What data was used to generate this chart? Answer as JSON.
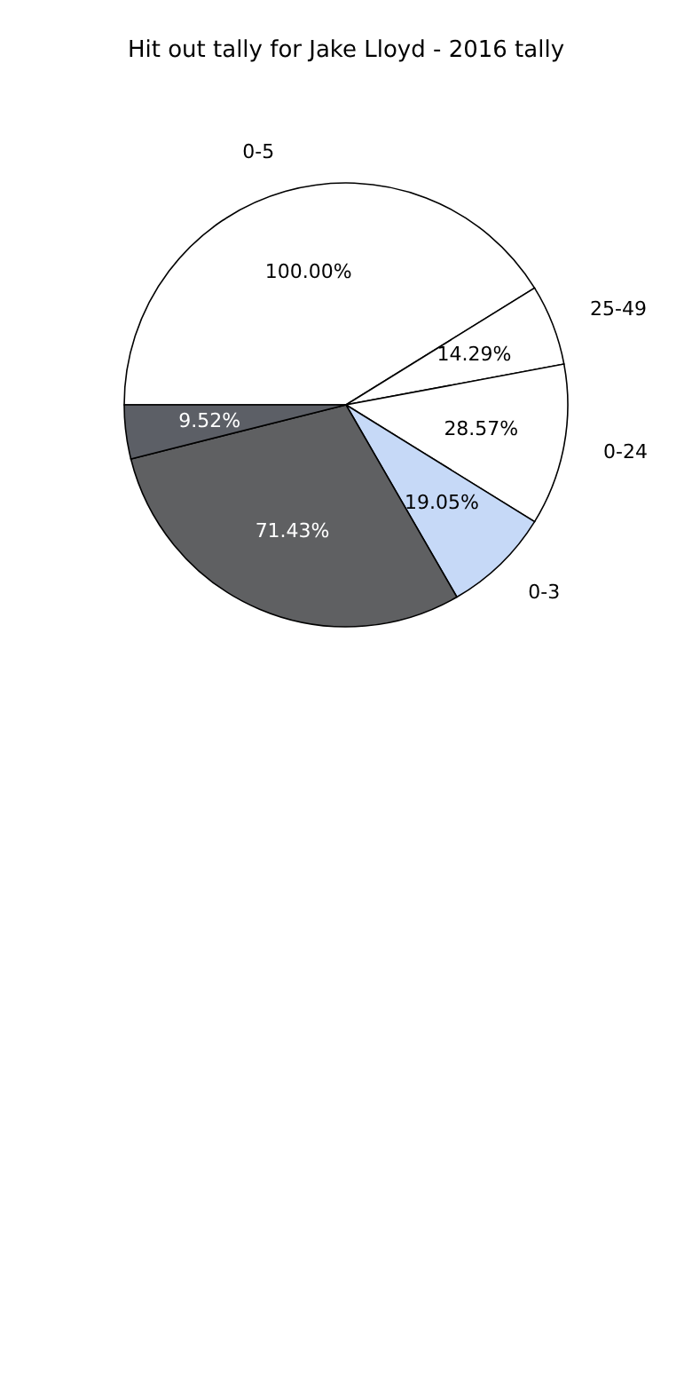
{
  "chart_data": {
    "type": "pie",
    "title": "Hit out tally for Jake Lloyd - 2016 tally",
    "categories": [
      "0-5",
      "25-49",
      "0-24",
      "0-3",
      null,
      null
    ],
    "values": [
      100,
      14.29,
      28.57,
      19.05,
      71.43,
      9.52
    ],
    "value_labels": [
      "100.00%",
      "14.29%",
      "28.57%",
      "19.05%",
      "71.43%",
      "9.52%"
    ],
    "colors": [
      "#ffffff",
      "#ffffff",
      "#ffffff",
      "#c6d9f7",
      "#5f6062",
      "#5c5f66"
    ]
  }
}
